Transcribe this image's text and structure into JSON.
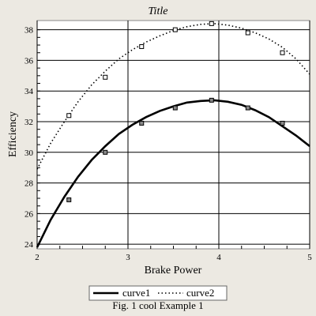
{
  "chart_data": {
    "type": "line",
    "title": "Title",
    "xlabel": "Brake Power",
    "ylabel": "Efficiency",
    "xlim": [
      2,
      5
    ],
    "ylim": [
      23.7,
      38.6
    ],
    "xticks": [
      "2",
      "3",
      "4",
      "5"
    ],
    "yticks": [
      "24",
      "26",
      "28",
      "30",
      "32",
      "34",
      "36",
      "38"
    ],
    "grid": true,
    "legend_position": "bottom-center",
    "series": [
      {
        "name": "curve1",
        "style": "solid",
        "color": "#000000",
        "curve_x": [
          2.0,
          2.15,
          2.3,
          2.45,
          2.6,
          2.75,
          2.9,
          3.05,
          3.2,
          3.35,
          3.5,
          3.65,
          3.8,
          3.95,
          4.1,
          4.25,
          4.4,
          4.55,
          4.7,
          4.85,
          5.0
        ],
        "curve_y": [
          23.8,
          25.6,
          27.1,
          28.4,
          29.5,
          30.4,
          31.2,
          31.8,
          32.3,
          32.7,
          33.0,
          33.25,
          33.35,
          33.4,
          33.3,
          33.1,
          32.75,
          32.3,
          31.7,
          31.1,
          30.4
        ],
        "markers_x": [
          2.35,
          2.75,
          3.15,
          3.52,
          3.92,
          4.32,
          4.7
        ],
        "markers_y": [
          26.9,
          30.0,
          31.9,
          32.9,
          33.4,
          32.9,
          31.9
        ]
      },
      {
        "name": "curve2",
        "style": "dotted",
        "color": "#000000",
        "curve_x": [
          2.0,
          2.15,
          2.3,
          2.45,
          2.6,
          2.75,
          2.9,
          3.05,
          3.2,
          3.35,
          3.5,
          3.65,
          3.8,
          3.95,
          4.1,
          4.25,
          4.4,
          4.55,
          4.7,
          4.85,
          5.0
        ],
        "curve_y": [
          28.9,
          30.6,
          32.0,
          33.3,
          34.4,
          35.3,
          36.1,
          36.7,
          37.2,
          37.6,
          37.95,
          38.2,
          38.35,
          38.4,
          38.3,
          38.1,
          37.8,
          37.4,
          36.85,
          36.1,
          35.1
        ],
        "markers_x": [
          2.35,
          2.75,
          3.15,
          3.52,
          3.92,
          4.32,
          4.7
        ],
        "markers_y": [
          32.4,
          34.9,
          36.9,
          38.0,
          38.4,
          37.8,
          36.5
        ]
      }
    ],
    "caption": "Fig. 1 cool  Example 1"
  }
}
